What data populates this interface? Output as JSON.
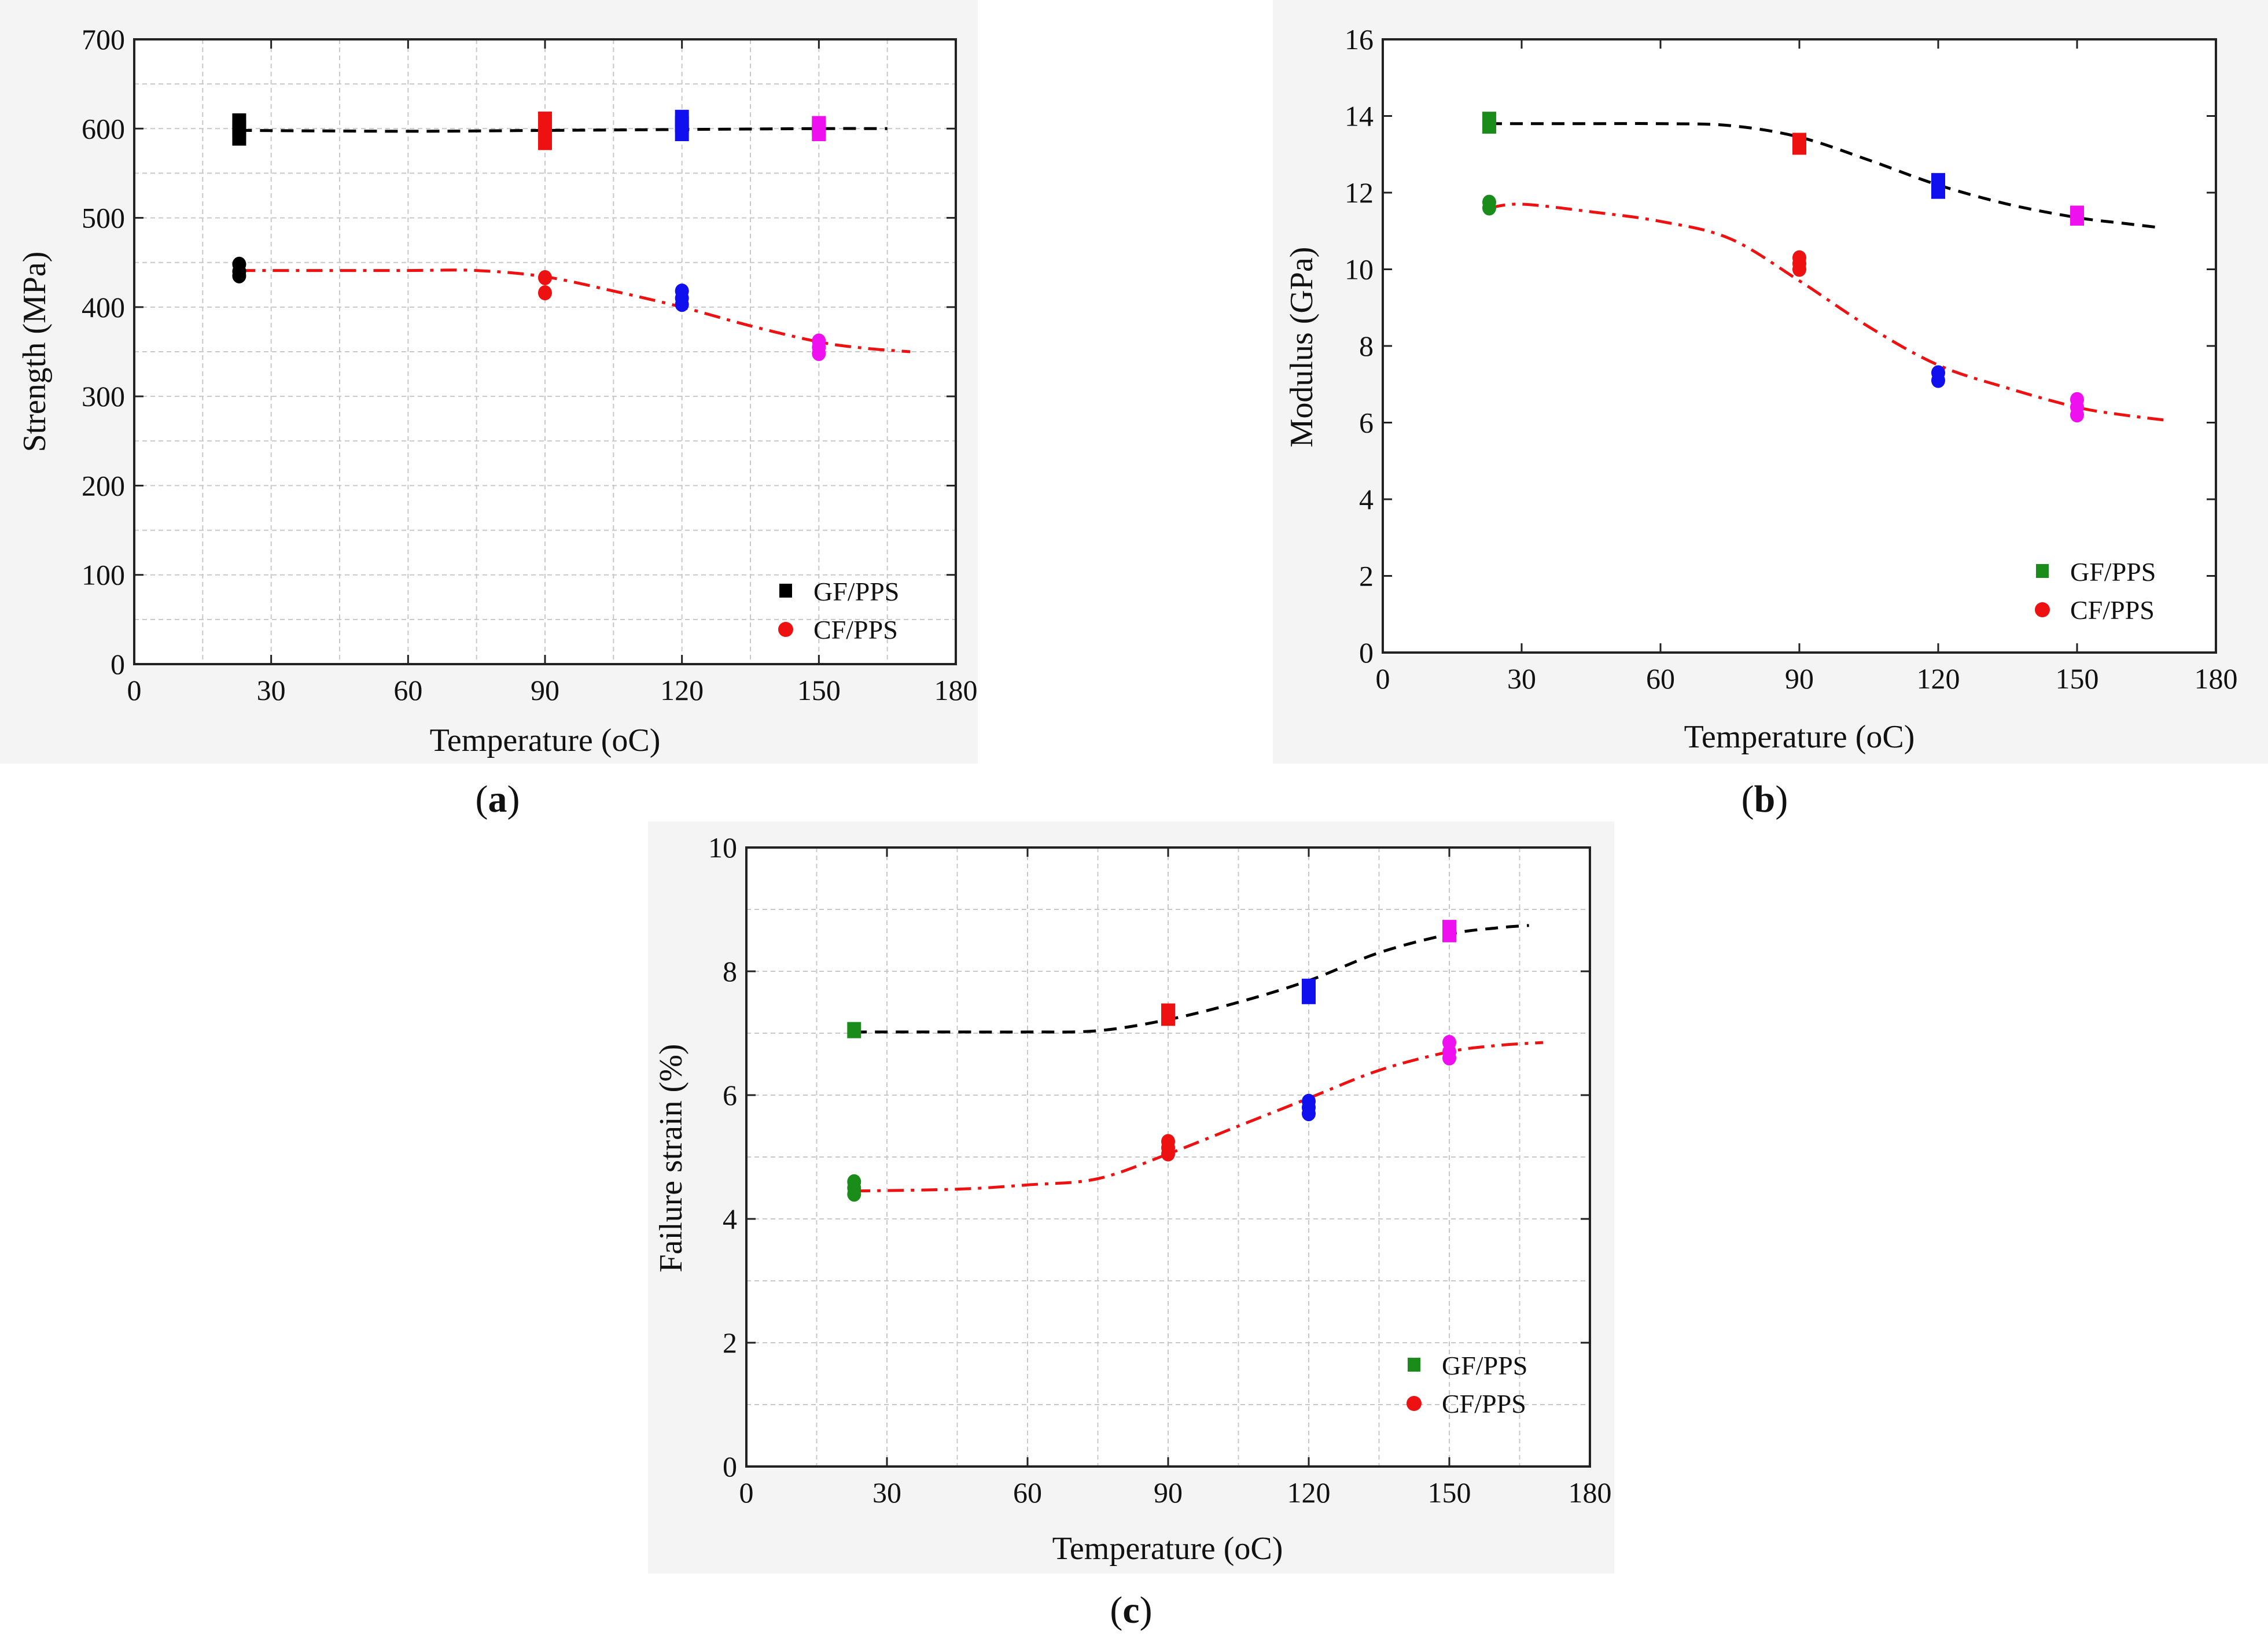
{
  "figure": {
    "series_names": [
      "GF/PPS",
      "CF/PPS"
    ],
    "colors": {
      "gf_fit": "#000000",
      "cf_fit": "#ee1111",
      "t23": "#000000",
      "t23_alt": "#1a8c1a",
      "t90": "#ee1111",
      "t120": "#1010ee",
      "t150": "#ee10ee",
      "grid": "#c8c8c8",
      "panel_bg": "#f4f4f4"
    }
  },
  "chart_data": [
    {
      "id": "a",
      "type": "scatter",
      "caption_open": "(",
      "caption_letter": "a",
      "caption_close": ")",
      "xlabel": "Temperature (oC)",
      "ylabel": "Strength (MPa)",
      "xlim": [
        0,
        180
      ],
      "ylim": [
        0,
        700
      ],
      "xticks": [
        0,
        30,
        60,
        90,
        120,
        150,
        180
      ],
      "yticks": [
        0,
        100,
        200,
        300,
        400,
        500,
        600,
        700
      ],
      "grid": true,
      "legend_position": "bottom-right",
      "legend_colors": [
        "#000000",
        "#ee1111"
      ],
      "series": [
        {
          "name": "GF/PPS",
          "marker": "square",
          "points": [
            {
              "x": 23,
              "y": [
                590,
                600,
                608
              ],
              "color": "#000000"
            },
            {
              "x": 90,
              "y": [
                585,
                600,
                610
              ],
              "color": "#ee1111"
            },
            {
              "x": 120,
              "y": [
                595,
                605,
                612
              ],
              "color": "#1010ee"
            },
            {
              "x": 150,
              "y": [
                595,
                600,
                605
              ],
              "color": "#ee10ee"
            }
          ],
          "fit": {
            "style": "dash",
            "color": "#000000",
            "x": [
              23,
              60,
              90,
              120,
              150,
              165
            ],
            "y": [
              598,
              597,
              598,
              599,
              600,
              600
            ]
          }
        },
        {
          "name": "CF/PPS",
          "marker": "circle",
          "points": [
            {
              "x": 23,
              "y": [
                435,
                440,
                448
              ],
              "color": "#000000"
            },
            {
              "x": 90,
              "y": [
                416,
                433
              ],
              "color": "#ee1111"
            },
            {
              "x": 120,
              "y": [
                403,
                410,
                418
              ],
              "color": "#1010ee"
            },
            {
              "x": 150,
              "y": [
                348,
                355,
                362
              ],
              "color": "#ee10ee"
            }
          ],
          "fit": {
            "style": "dashdot",
            "color": "#ee1111",
            "x": [
              23,
              45,
              60,
              75,
              90,
              105,
              120,
              135,
              150,
              160,
              170
            ],
            "y": [
              441,
              441,
              441,
              441,
              434,
              418,
              400,
              379,
              361,
              354,
              350
            ]
          }
        }
      ]
    },
    {
      "id": "b",
      "type": "scatter",
      "caption_open": "(",
      "caption_letter": "b",
      "caption_close": ")",
      "xlabel": "Temperature (oC)",
      "ylabel": "Modulus (GPa)",
      "xlim": [
        0,
        180
      ],
      "ylim": [
        0,
        16
      ],
      "xticks": [
        0,
        30,
        60,
        90,
        120,
        150,
        180
      ],
      "yticks": [
        0,
        2,
        4,
        6,
        8,
        10,
        12,
        14,
        16
      ],
      "grid": false,
      "legend_position": "bottom-right",
      "legend_colors": [
        "#1a8c1a",
        "#ee1111"
      ],
      "series": [
        {
          "name": "GF/PPS",
          "marker": "square",
          "points": [
            {
              "x": 23,
              "y": [
                13.75,
                13.9
              ],
              "color": "#1a8c1a"
            },
            {
              "x": 90,
              "y": [
                13.2,
                13.35
              ],
              "color": "#ee1111"
            },
            {
              "x": 120,
              "y": [
                12.05,
                12.2,
                12.3
              ],
              "color": "#1010ee"
            },
            {
              "x": 150,
              "y": [
                11.35,
                11.45
              ],
              "color": "#ee10ee"
            }
          ],
          "fit": {
            "style": "dash",
            "color": "#000000",
            "x": [
              23,
              45,
              60,
              75,
              90,
              105,
              120,
              135,
              150,
              160,
              167
            ],
            "y": [
              13.8,
              13.8,
              13.8,
              13.75,
              13.45,
              12.85,
              12.2,
              11.7,
              11.35,
              11.2,
              11.1
            ]
          }
        },
        {
          "name": "CF/PPS",
          "marker": "circle",
          "points": [
            {
              "x": 23,
              "y": [
                11.6,
                11.75
              ],
              "color": "#1a8c1a"
            },
            {
              "x": 90,
              "y": [
                10.0,
                10.15,
                10.3
              ],
              "color": "#ee1111"
            },
            {
              "x": 120,
              "y": [
                7.1,
                7.3
              ],
              "color": "#1010ee"
            },
            {
              "x": 150,
              "y": [
                6.2,
                6.4,
                6.6
              ],
              "color": "#ee10ee"
            }
          ],
          "fit": {
            "style": "dashdot",
            "color": "#ee1111",
            "x": [
              23,
              30,
              45,
              60,
              75,
              90,
              105,
              120,
              135,
              150,
              160,
              170
            ],
            "y": [
              11.6,
              11.7,
              11.5,
              11.25,
              10.8,
              9.7,
              8.5,
              7.5,
              6.9,
              6.4,
              6.2,
              6.05
            ]
          }
        }
      ]
    },
    {
      "id": "c",
      "type": "scatter",
      "caption_open": "(",
      "caption_letter": "c",
      "caption_close": ")",
      "xlabel": "Temperature (oC)",
      "ylabel": "Failure strain (%)",
      "xlim": [
        0,
        180
      ],
      "ylim": [
        0,
        10
      ],
      "xticks": [
        0,
        30,
        60,
        90,
        120,
        150,
        180
      ],
      "yticks": [
        0,
        2,
        4,
        6,
        8,
        10
      ],
      "grid": true,
      "legend_position": "bottom-right",
      "legend_colors": [
        "#1a8c1a",
        "#ee1111"
      ],
      "series": [
        {
          "name": "GF/PPS",
          "marker": "square",
          "points": [
            {
              "x": 23,
              "y": [
                7.05
              ],
              "color": "#1a8c1a"
            },
            {
              "x": 90,
              "y": [
                7.25,
                7.35
              ],
              "color": "#ee1111"
            },
            {
              "x": 120,
              "y": [
                7.6,
                7.75
              ],
              "color": "#1010ee"
            },
            {
              "x": 150,
              "y": [
                8.6,
                8.7
              ],
              "color": "#ee10ee"
            }
          ],
          "fit": {
            "style": "dash",
            "color": "#000000",
            "x": [
              23,
              45,
              60,
              75,
              90,
              105,
              120,
              135,
              150,
              160,
              167
            ],
            "y": [
              7.02,
              7.02,
              7.02,
              7.04,
              7.22,
              7.5,
              7.85,
              8.3,
              8.6,
              8.7,
              8.74
            ]
          }
        },
        {
          "name": "CF/PPS",
          "marker": "circle",
          "points": [
            {
              "x": 23,
              "y": [
                4.4,
                4.5,
                4.6
              ],
              "color": "#1a8c1a"
            },
            {
              "x": 90,
              "y": [
                5.05,
                5.15,
                5.25
              ],
              "color": "#ee1111"
            },
            {
              "x": 120,
              "y": [
                5.7,
                5.8,
                5.9
              ],
              "color": "#1010ee"
            },
            {
              "x": 150,
              "y": [
                6.6,
                6.7,
                6.85
              ],
              "color": "#ee10ee"
            }
          ],
          "fit": {
            "style": "dashdot",
            "color": "#ee1111",
            "x": [
              23,
              45,
              60,
              75,
              90,
              105,
              120,
              135,
              150,
              160,
              170
            ],
            "y": [
              4.45,
              4.48,
              4.55,
              4.65,
              5.05,
              5.5,
              5.95,
              6.4,
              6.7,
              6.8,
              6.85
            ]
          }
        }
      ]
    }
  ]
}
